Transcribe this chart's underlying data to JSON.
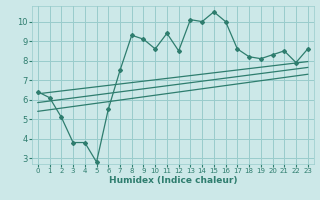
{
  "xlabel": "Humidex (Indice chaleur)",
  "ylabel": "",
  "bg_color": "#cce8e8",
  "grid_color": "#99cccc",
  "line_color": "#2e7d6e",
  "xlim": [
    -0.5,
    23.5
  ],
  "ylim": [
    2.7,
    10.8
  ],
  "xticks": [
    0,
    1,
    2,
    3,
    4,
    5,
    6,
    7,
    8,
    9,
    10,
    11,
    12,
    13,
    14,
    15,
    16,
    17,
    18,
    19,
    20,
    21,
    22,
    23
  ],
  "yticks": [
    3,
    4,
    5,
    6,
    7,
    8,
    9,
    10
  ],
  "scatter_x": [
    0,
    1,
    2,
    3,
    4,
    5,
    6,
    7,
    8,
    9,
    10,
    11,
    12,
    13,
    14,
    15,
    16,
    17,
    18,
    19,
    20,
    21,
    22,
    23
  ],
  "scatter_y": [
    6.4,
    6.1,
    5.1,
    3.8,
    3.8,
    2.8,
    5.5,
    7.5,
    9.3,
    9.1,
    8.6,
    9.4,
    8.5,
    10.1,
    10.0,
    10.5,
    10.0,
    8.6,
    8.2,
    8.1,
    8.3,
    8.5,
    7.9,
    8.6
  ],
  "line1_x": [
    0,
    23
  ],
  "line1_y": [
    6.3,
    7.95
  ],
  "line2_x": [
    0,
    23
  ],
  "line2_y": [
    5.85,
    7.65
  ],
  "line3_x": [
    0,
    23
  ],
  "line3_y": [
    5.4,
    7.3
  ]
}
